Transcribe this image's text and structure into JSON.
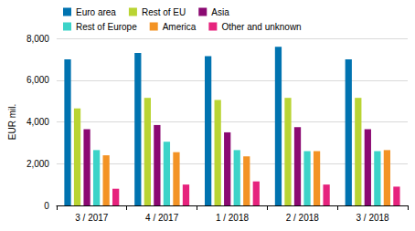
{
  "chart_data": {
    "type": "bar",
    "y_label": "EUR mil.",
    "categories": [
      "3 / 2017",
      "4 / 2017",
      "1 / 2018",
      "2 / 2018",
      "3 / 2018"
    ],
    "series": [
      {
        "name": "Euro area",
        "color": "#0073b0",
        "values": [
          7000,
          7300,
          7150,
          7600,
          7000
        ]
      },
      {
        "name": "Rest of EU",
        "color": "#b9d433",
        "values": [
          4650,
          5150,
          5050,
          5150,
          5150
        ]
      },
      {
        "name": "Asia",
        "color": "#8b0a72",
        "values": [
          3650,
          3850,
          3500,
          3750,
          3650
        ]
      },
      {
        "name": "Rest of Europe",
        "color": "#3cd3c8",
        "values": [
          2650,
          3050,
          2650,
          2600,
          2600
        ]
      },
      {
        "name": "America",
        "color": "#f39325",
        "values": [
          2400,
          2550,
          2350,
          2600,
          2650
        ]
      },
      {
        "name": "Other and unknown",
        "color": "#e6237d",
        "values": [
          800,
          1000,
          1150,
          1000,
          900
        ]
      }
    ],
    "ylim": [
      0,
      8000
    ],
    "yticks": [
      0,
      {
        "value": 2000,
        "label": "2,000"
      },
      {
        "value": 4000,
        "label": "4,000"
      },
      {
        "value": 6000,
        "label": "6,000"
      },
      {
        "value": 8000,
        "label": "8,000"
      }
    ],
    "grid": true,
    "legend": "top-left"
  }
}
